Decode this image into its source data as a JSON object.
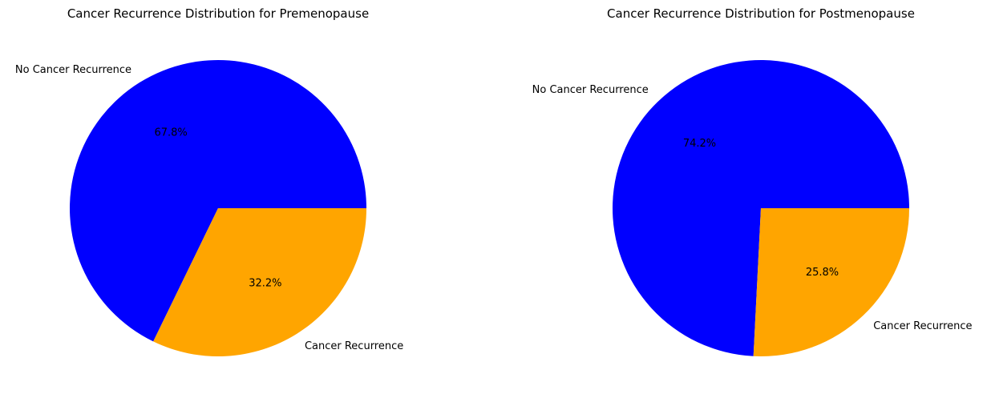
{
  "chart_data": [
    {
      "type": "pie",
      "title": "Cancer Recurrence Distribution for Premenopause",
      "categories": [
        "No Cancer Recurrence",
        "Cancer Recurrence"
      ],
      "values": [
        67.8,
        32.2
      ],
      "percent_labels": [
        "67.8%",
        "32.2%"
      ],
      "colors": [
        "#0000ff",
        "#ffa500"
      ],
      "start_angle": 0,
      "direction": "counterclockwise",
      "legend": "none"
    },
    {
      "type": "pie",
      "title": "Cancer Recurrence Distribution for Postmenopause",
      "categories": [
        "No Cancer Recurrence",
        "Cancer Recurrence"
      ],
      "values": [
        74.2,
        25.8
      ],
      "percent_labels": [
        "74.2%",
        "25.8%"
      ],
      "colors": [
        "#0000ff",
        "#ffa500"
      ],
      "start_angle": 0,
      "direction": "counterclockwise",
      "legend": "none"
    }
  ]
}
